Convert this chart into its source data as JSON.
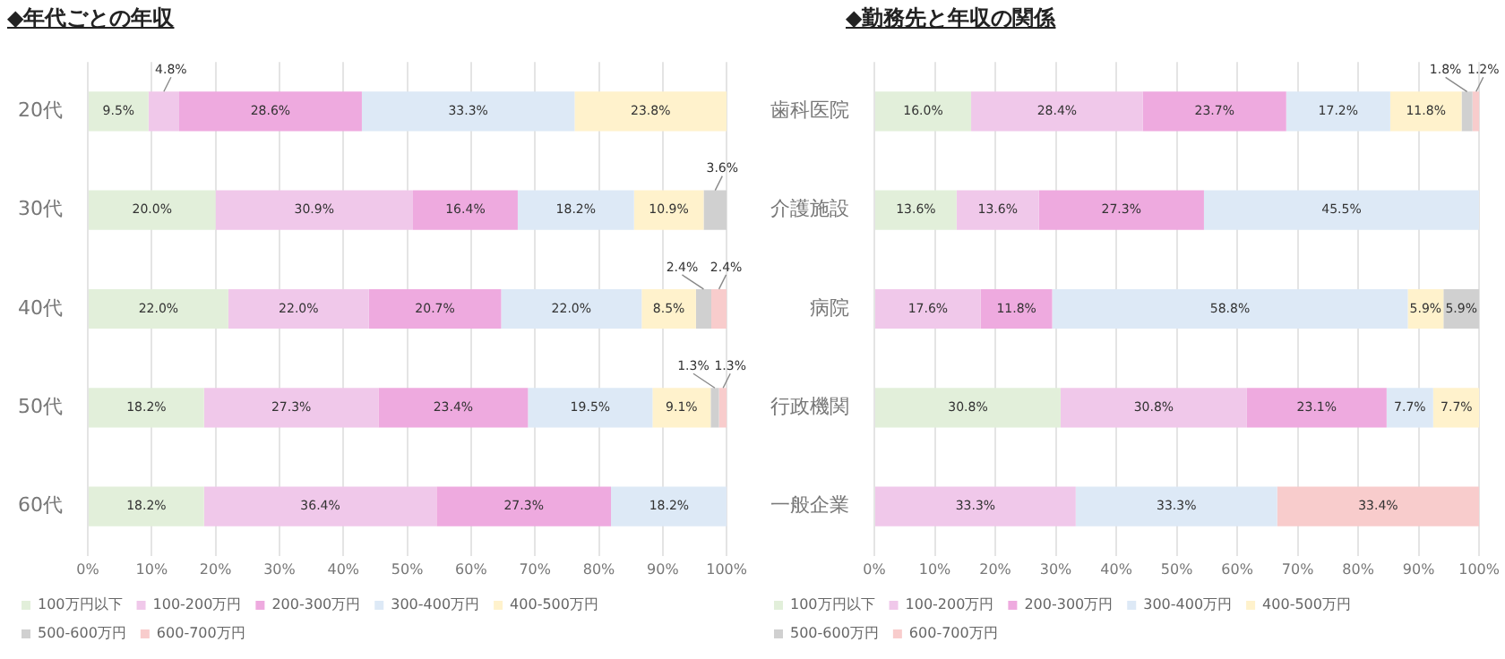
{
  "chart_data": [
    {
      "type": "bar",
      "orientation": "horizontal",
      "stacked": true,
      "title": "◆年代ごとの年収",
      "categories": [
        "20代",
        "30代",
        "40代",
        "50代",
        "60代"
      ],
      "xlim": [
        0,
        100
      ],
      "xticks": [
        {
          "value": 0,
          "label": "0%"
        },
        {
          "value": 10,
          "label": "10%"
        },
        {
          "value": 20,
          "label": "20%"
        },
        {
          "value": 30,
          "label": "30%"
        },
        {
          "value": 40,
          "label": "40%"
        },
        {
          "value": 50,
          "label": "50%"
        },
        {
          "value": 60,
          "label": "60%"
        },
        {
          "value": 70,
          "label": "70%"
        },
        {
          "value": 80,
          "label": "80%"
        },
        {
          "value": 90,
          "label": "90%"
        },
        {
          "value": 100,
          "label": "100%"
        }
      ],
      "grid": "x",
      "legend": "bottom",
      "data_labels": false,
      "series": [
        {
          "name": "100万円以下",
          "color": "#e2efda",
          "values": [
            9.5,
            20.0,
            22.0,
            18.2,
            18.2
          ],
          "value_labels": [
            "9.5%",
            "20.0%",
            "22.0%",
            "18.2%",
            "18.2%"
          ]
        },
        {
          "name": "100-200万円",
          "color": "#f0c8ea",
          "values": [
            4.8,
            30.9,
            22.0,
            27.3,
            36.4
          ],
          "value_labels": [
            "4.8%",
            "30.9%",
            "22.0%",
            "27.3%",
            "36.4%"
          ]
        },
        {
          "name": "200-300万円",
          "color": "#eeaadf",
          "values": [
            28.6,
            16.4,
            20.7,
            23.4,
            27.3
          ],
          "value_labels": [
            "28.6%",
            "16.4%",
            "20.7%",
            "23.4%",
            "27.3%"
          ]
        },
        {
          "name": "300-400万円",
          "color": "#dde9f6",
          "values": [
            33.3,
            18.2,
            22.0,
            19.5,
            18.2
          ],
          "value_labels": [
            "33.3%",
            "18.2%",
            "22.0%",
            "19.5%",
            "18.2%"
          ]
        },
        {
          "name": "400-500万円",
          "color": "#fff2cc",
          "values": [
            23.8,
            10.9,
            8.5,
            9.1,
            null
          ],
          "value_labels": [
            "23.8%",
            "10.9%",
            "8.5%",
            "9.1%",
            null
          ]
        },
        {
          "name": "500-600万円",
          "color": "#d0d0d0",
          "values": [
            null,
            3.6,
            2.4,
            1.3,
            null
          ],
          "value_labels": [
            null,
            "3.6%",
            "2.4%",
            "1.3%",
            null
          ]
        },
        {
          "name": "600-700万円",
          "color": "#f8cccc",
          "values": [
            null,
            null,
            2.4,
            1.3,
            null
          ],
          "value_labels": [
            null,
            null,
            "2.4%",
            "1.3%",
            null
          ]
        }
      ]
    },
    {
      "type": "bar",
      "orientation": "horizontal",
      "stacked": true,
      "title": "◆勤務先と年収の関係",
      "categories": [
        "歯科医院",
        "介護施設",
        "病院",
        "行政機関",
        "一般企業"
      ],
      "xlim": [
        0,
        100
      ],
      "xticks": [
        {
          "value": 0,
          "label": "0%"
        },
        {
          "value": 10,
          "label": "10%"
        },
        {
          "value": 20,
          "label": "20%"
        },
        {
          "value": 30,
          "label": "30%"
        },
        {
          "value": 40,
          "label": "40%"
        },
        {
          "value": 50,
          "label": "50%"
        },
        {
          "value": 60,
          "label": "60%"
        },
        {
          "value": 70,
          "label": "70%"
        },
        {
          "value": 80,
          "label": "80%"
        },
        {
          "value": 90,
          "label": "90%"
        },
        {
          "value": 100,
          "label": "100%"
        }
      ],
      "grid": "x",
      "legend": "bottom",
      "data_labels": false,
      "series": [
        {
          "name": "100万円以下",
          "color": "#e2efda",
          "values": [
            16.0,
            13.6,
            null,
            30.8,
            null
          ],
          "value_labels": [
            "16.0%",
            "13.6%",
            null,
            "30.8%",
            null
          ]
        },
        {
          "name": "100-200万円",
          "color": "#f0c8ea",
          "values": [
            28.4,
            13.6,
            17.6,
            30.8,
            33.3
          ],
          "value_labels": [
            "28.4%",
            "13.6%",
            "17.6%",
            "30.8%",
            "33.3%"
          ]
        },
        {
          "name": "200-300万円",
          "color": "#eeaadf",
          "values": [
            23.7,
            27.3,
            11.8,
            23.1,
            null
          ],
          "value_labels": [
            "23.7%",
            "27.3%",
            "11.8%",
            "23.1%",
            null
          ]
        },
        {
          "name": "300-400万円",
          "color": "#dde9f6",
          "values": [
            17.2,
            45.5,
            58.8,
            7.7,
            33.3
          ],
          "value_labels": [
            "17.2%",
            "45.5%",
            "58.8%",
            "7.7%",
            "33.3%"
          ]
        },
        {
          "name": "400-500万円",
          "color": "#fff2cc",
          "values": [
            11.8,
            null,
            5.9,
            7.7,
            null
          ],
          "value_labels": [
            "11.8%",
            null,
            "5.9%",
            "7.7%",
            null
          ]
        },
        {
          "name": "500-600万円",
          "color": "#d0d0d0",
          "values": [
            1.8,
            null,
            5.9,
            null,
            null
          ],
          "value_labels": [
            "1.8%",
            null,
            "5.9%",
            null,
            null
          ]
        },
        {
          "name": "600-700万円",
          "color": "#f8cccc",
          "values": [
            1.2,
            null,
            null,
            null,
            33.4
          ],
          "value_labels": [
            "1.2%",
            null,
            null,
            null,
            "33.4%"
          ]
        }
      ]
    }
  ]
}
